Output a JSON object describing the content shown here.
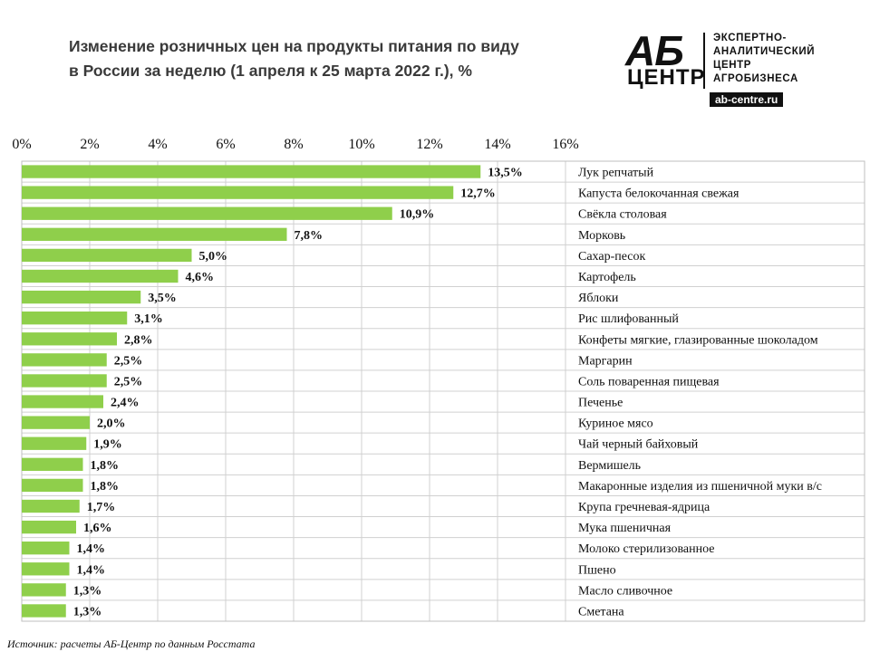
{
  "title": {
    "line1": "Изменение розничных цен на продукты питания по виду",
    "line2": "в России за неделю (1 апреля к 25 марта 2022 г.), %"
  },
  "logo": {
    "mark_top": "АБ",
    "mark_bottom": "ЦЕНТР",
    "desc_lines": [
      "ЭКСПЕРТНО-",
      "АНАЛИТИЧЕСКИЙ",
      "ЦЕНТР",
      "АГРОБИЗНЕСА"
    ],
    "url": "ab-centre.ru"
  },
  "source": {
    "label": "Источник:",
    "text": "расчеты АБ-Центр по данным Росстата"
  },
  "colors": {
    "bar": "#8fcf4b",
    "grid": "#d0d0d0",
    "border": "#bfbfbf"
  },
  "chart_data": {
    "type": "bar",
    "orientation": "horizontal",
    "xlim": [
      0,
      16
    ],
    "ticks": [
      "0%",
      "2%",
      "4%",
      "6%",
      "8%",
      "10%",
      "12%",
      "14%",
      "16%"
    ],
    "tick_values": [
      0,
      2,
      4,
      6,
      8,
      10,
      12,
      14,
      16
    ],
    "grid": true,
    "categories": [
      "Лук репчатый",
      "Капуста белокочанная свежая",
      "Свёкла столовая",
      "Морковь",
      "Сахар-песок",
      "Картофель",
      "Яблоки",
      "Рис шлифованный",
      "Конфеты мягкие, глазированные шоколадом",
      "Маргарин",
      "Соль поваренная пищевая",
      "Печенье",
      "Куриное мясо",
      "Чай черный байховый",
      "Вермишель",
      "Макаронные изделия из пшеничной муки в/с",
      "Крупа гречневая-ядрица",
      "Мука пшеничная",
      "Молоко стерилизованное",
      "Пшено",
      "Масло сливочное",
      "Сметана"
    ],
    "values": [
      13.5,
      12.7,
      10.9,
      7.8,
      5.0,
      4.6,
      3.5,
      3.1,
      2.8,
      2.5,
      2.5,
      2.4,
      2.0,
      1.9,
      1.8,
      1.8,
      1.7,
      1.6,
      1.4,
      1.4,
      1.3,
      1.3
    ],
    "labels": [
      "13,5%",
      "12,7%",
      "10,9%",
      "7,8%",
      "5,0%",
      "4,6%",
      "3,5%",
      "3,1%",
      "2,8%",
      "2,5%",
      "2,5%",
      "2,4%",
      "2,0%",
      "1,9%",
      "1,8%",
      "1,8%",
      "1,7%",
      "1,6%",
      "1,4%",
      "1,4%",
      "1,3%",
      "1,3%"
    ]
  }
}
